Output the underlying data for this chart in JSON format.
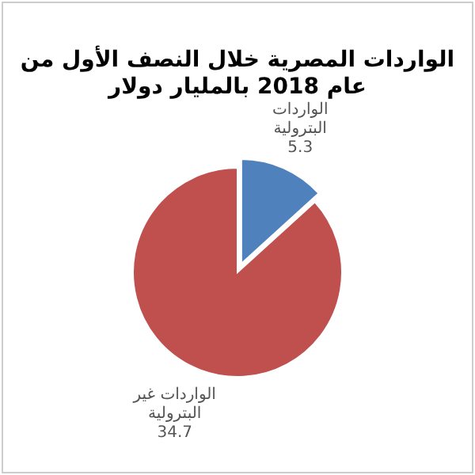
{
  "chart_data": {
    "type": "pie",
    "title": "الواردات المصرية خلال النصف الأول من عام 2018 بالمليار دولار",
    "categories": [
      "الواردات البترولية",
      "الواردات غير البترولية"
    ],
    "values": [
      5.3,
      34.7
    ],
    "colors": [
      "#4f81bd",
      "#c0504d"
    ],
    "data_labels": true
  }
}
